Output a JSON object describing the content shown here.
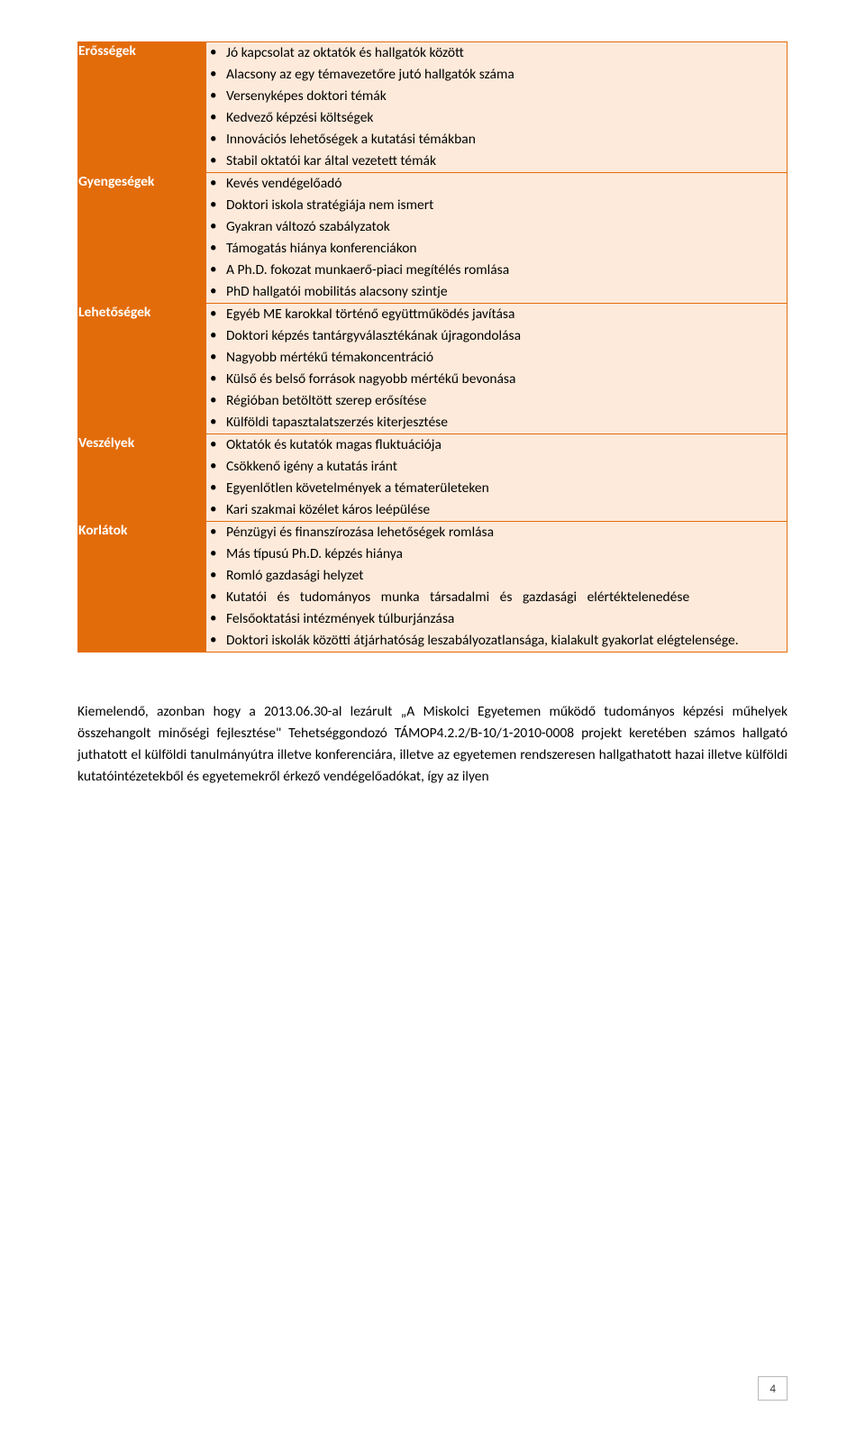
{
  "colors": {
    "label_bg": "#e36c0a",
    "content_bg": "#fdeada",
    "border": "#e36c0a"
  },
  "rows": [
    {
      "label": "Erősségek",
      "items": [
        "Jó kapcsolat az oktatók és hallgatók között",
        "Alacsony az egy témavezetőre jutó hallgatók száma",
        "Versenyképes doktori témák",
        "Kedvező képzési költségek",
        "Innovációs lehetőségek a kutatási témákban",
        "Stabil oktatói kar által vezetett témák"
      ]
    },
    {
      "label": "Gyengeségek",
      "items": [
        "Kevés vendégelőadó",
        "Doktori iskola stratégiája nem ismert",
        "Gyakran változó szabályzatok",
        "Támogatás hiánya konferenciákon",
        "A Ph.D. fokozat munkaerő-piaci megítélés romlása",
        "PhD hallgatói mobilitás alacsony szintje"
      ]
    },
    {
      "label": "Lehetőségek",
      "items": [
        "Egyéb ME karokkal történő együttműködés javítása",
        "Doktori képzés tantárgyválasztékának újragondolása",
        "Nagyobb mértékű témakoncentráció",
        "Külső és belső források nagyobb mértékű bevonása",
        "Régióban betöltött szerep erősítése",
        "Külföldi tapasztalatszerzés kiterjesztése"
      ]
    },
    {
      "label": "Veszélyek",
      "items": [
        "Oktatók és kutatók magas fluktuációja",
        "Csökkenő igény a kutatás iránt",
        "Egyenlőtlen követelmények a tématerületeken",
        "Kari szakmai közélet káros leépülése"
      ]
    },
    {
      "label": "Korlátok",
      "items": [
        "Pénzügyi és finanszírozása lehetőségek romlása",
        "Más típusú Ph.D. képzés hiánya",
        "Romló gazdasági helyzet",
        "Kutatói és tudományos munka társadalmi és gazdasági elértéktelenedése",
        "Felsőoktatási intézmények túlburjánzása",
        "Doktori iskolák közötti átjárhatóság leszabályozatlansága, kialakult gyakorlat elégtelensége."
      ],
      "wide_indices": [
        3
      ]
    }
  ],
  "paragraph": "Kiemelendő, azonban hogy a 2013.06.30-al lezárult „A Miskolci Egyetemen működő tudományos képzési műhelyek összehangolt minőségi fejlesztése\" Tehetséggondozó TÁMOP4.2.2/B-10/1-2010-0008 projekt keretében számos hallgató juthatott el külföldi tanulmányútra illetve konferenciára, illetve az egyetemen rendszeresen hallgathatott hazai illetve külföldi kutatóintézetekből és egyetemekről érkező vendégelőadókat, így az ilyen",
  "page_number": "4"
}
